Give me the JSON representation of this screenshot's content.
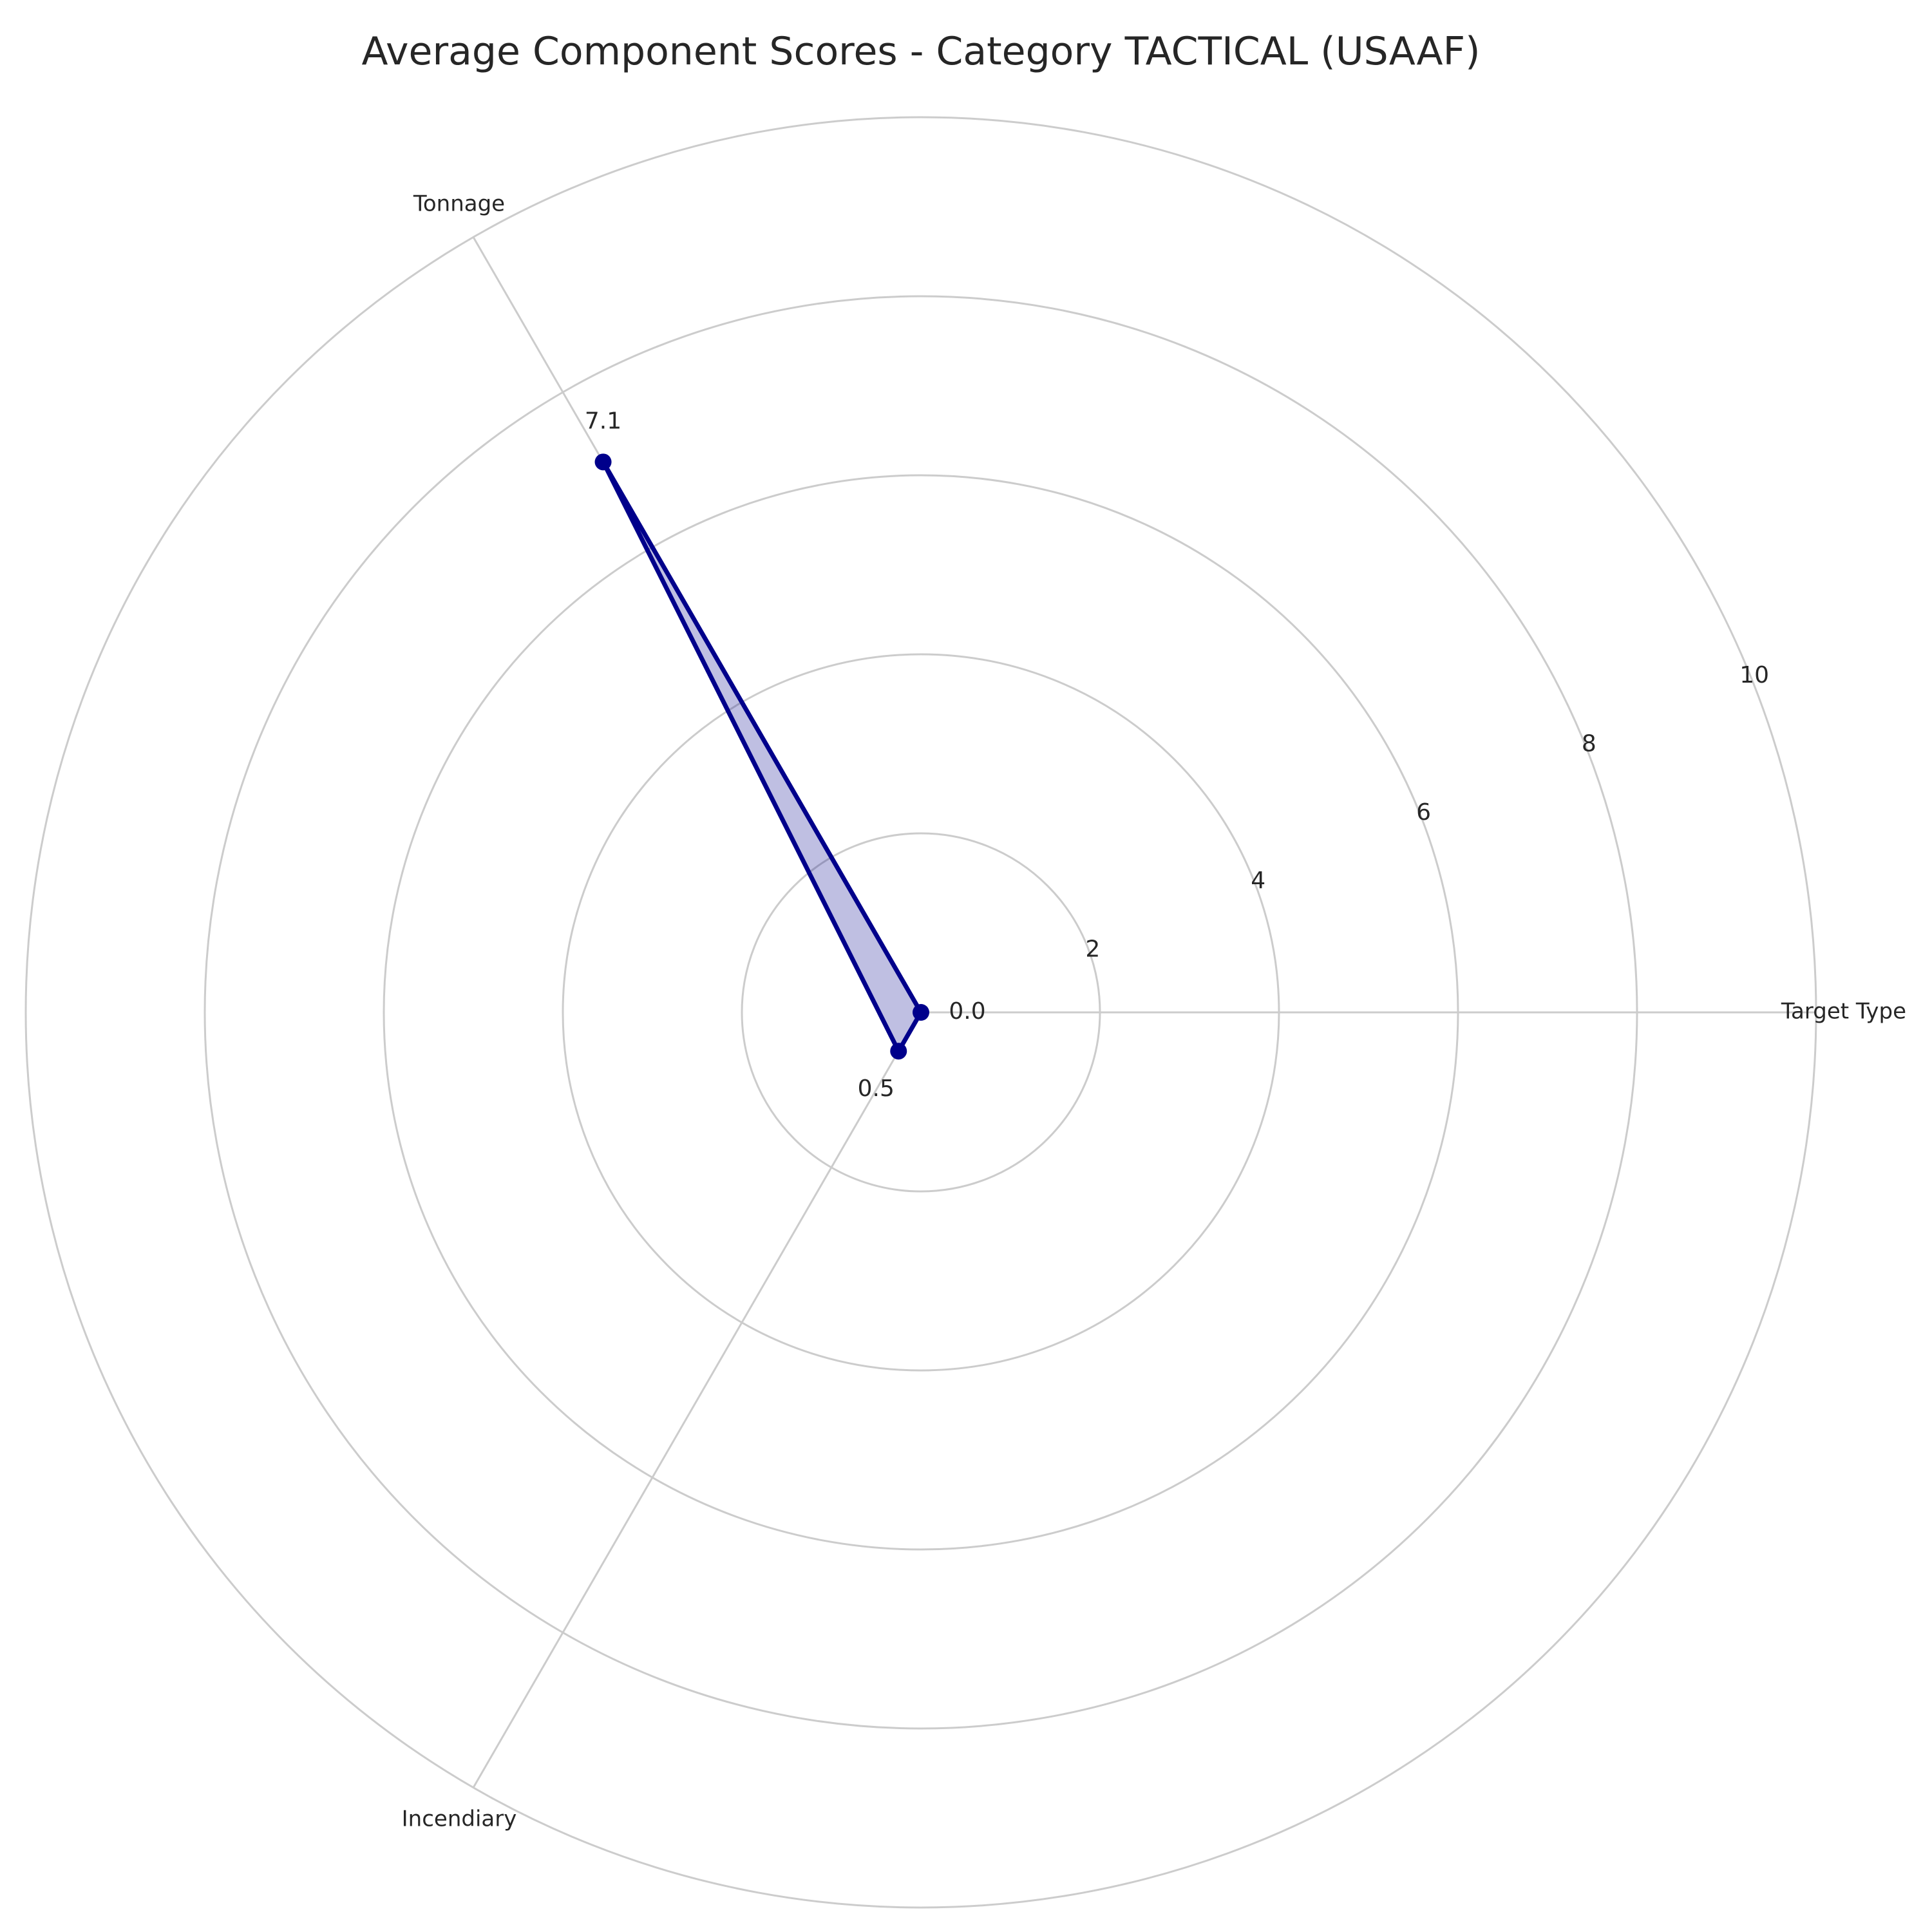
{
  "chart_data": {
    "type": "radar",
    "title": "Average Component Scores - Category TACTICAL (USAAF)",
    "categories": [
      "Target Type",
      "Tonnage",
      "Incendiary"
    ],
    "values": [
      0.0,
      7.1,
      0.5
    ],
    "value_labels": [
      "0.0",
      "7.1",
      "0.5"
    ],
    "rlim": [
      0,
      10
    ],
    "rticks": [
      2,
      4,
      6,
      8,
      10
    ],
    "rtick_labels": [
      "2",
      "4",
      "6",
      "8",
      "10"
    ],
    "grid": true,
    "line_color": "#00008b",
    "fill_color": "#00008b",
    "fill_opacity": 0.25,
    "grid_color": "#cccccc"
  }
}
